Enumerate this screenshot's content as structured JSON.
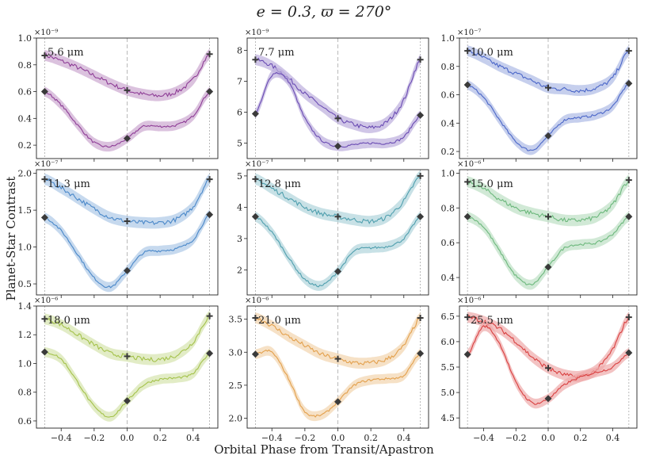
{
  "figure": {
    "title": "e = 0.3, ϖ = 270°",
    "ylabel": "Planet-Star Contrast",
    "xlabel": "Orbital Phase from Transit/Apastron"
  },
  "chart_data": [
    {
      "type": "line",
      "wavelength_label": "5.6 μm",
      "exponent_label": "×10⁻⁹",
      "color": "#8e3d96",
      "xlim": [
        -0.55,
        0.55
      ],
      "ylim": [
        0.1,
        1.0
      ],
      "yticks": [
        0.2,
        0.4,
        0.6,
        0.8,
        1.0
      ],
      "ytick_labels": [
        "0.2",
        "0.4",
        "0.6",
        "0.8",
        "1.0"
      ],
      "xticks": [
        -0.4,
        -0.2,
        0.0,
        0.2,
        0.4
      ],
      "xtick_labels": [],
      "series": [
        {
          "name": "upper",
          "x": [
            -0.5,
            -0.4,
            -0.3,
            -0.2,
            -0.1,
            0,
            0.1,
            0.2,
            0.3,
            0.4,
            0.5
          ],
          "values": [
            0.87,
            0.83,
            0.78,
            0.72,
            0.66,
            0.61,
            0.58,
            0.57,
            0.6,
            0.69,
            0.88
          ]
        },
        {
          "name": "lower",
          "x": [
            -0.5,
            -0.4,
            -0.3,
            -0.2,
            -0.1,
            0,
            0.1,
            0.2,
            0.3,
            0.4,
            0.5
          ],
          "values": [
            0.6,
            0.5,
            0.35,
            0.22,
            0.19,
            0.25,
            0.34,
            0.34,
            0.35,
            0.42,
            0.6
          ]
        }
      ],
      "markers": {
        "plus": [
          [
            -0.5,
            0.87
          ],
          [
            0,
            0.61
          ],
          [
            0.5,
            0.88
          ]
        ],
        "diamond": [
          [
            -0.5,
            0.6
          ],
          [
            0,
            0.25
          ],
          [
            0.5,
            0.6
          ]
        ]
      }
    },
    {
      "type": "line",
      "wavelength_label": "7.7 μm",
      "exponent_label": "×10⁻⁹",
      "color": "#6a4bb3",
      "xlim": [
        -0.55,
        0.55
      ],
      "ylim": [
        4.5,
        8.4
      ],
      "yticks": [
        5,
        6,
        7,
        8
      ],
      "ytick_labels": [
        "5",
        "6",
        "7",
        "8"
      ],
      "xticks": [
        -0.4,
        -0.2,
        0.0,
        0.2,
        0.4
      ],
      "xtick_labels": [],
      "series": [
        {
          "name": "upper",
          "x": [
            -0.5,
            -0.4,
            -0.3,
            -0.2,
            -0.1,
            0,
            0.1,
            0.2,
            0.3,
            0.4,
            0.5
          ],
          "values": [
            7.7,
            7.5,
            7.1,
            6.6,
            6.2,
            5.8,
            5.6,
            5.5,
            5.7,
            6.4,
            7.7
          ]
        },
        {
          "name": "lower",
          "x": [
            -0.5,
            -0.4,
            -0.3,
            -0.2,
            -0.1,
            0,
            0.1,
            0.2,
            0.3,
            0.4,
            0.5
          ],
          "values": [
            5.95,
            7.2,
            7.0,
            5.8,
            5.1,
            4.9,
            4.95,
            5.0,
            5.0,
            5.2,
            5.9
          ]
        }
      ],
      "markers": {
        "plus": [
          [
            -0.5,
            7.7
          ],
          [
            0,
            5.8
          ],
          [
            0.5,
            7.7
          ]
        ],
        "diamond": [
          [
            -0.5,
            5.95
          ],
          [
            0,
            4.9
          ],
          [
            0.5,
            5.9
          ]
        ]
      }
    },
    {
      "type": "line",
      "wavelength_label": "10.0 μm",
      "exponent_label": "×10⁻⁷",
      "color": "#4a66c8",
      "xlim": [
        -0.55,
        0.55
      ],
      "ylim": [
        0.15,
        1.0
      ],
      "yticks": [
        0.2,
        0.4,
        0.6,
        0.8,
        1.0
      ],
      "ytick_labels": [
        "0.2",
        "0.4",
        "0.6",
        "0.8",
        "1.0"
      ],
      "xticks": [
        -0.4,
        -0.2,
        0.0,
        0.2,
        0.4
      ],
      "xtick_labels": [],
      "series": [
        {
          "name": "upper",
          "x": [
            -0.5,
            -0.4,
            -0.3,
            -0.2,
            -0.1,
            0,
            0.1,
            0.2,
            0.3,
            0.4,
            0.5
          ],
          "values": [
            0.91,
            0.86,
            0.8,
            0.75,
            0.7,
            0.65,
            0.64,
            0.63,
            0.65,
            0.72,
            0.91
          ]
        },
        {
          "name": "lower",
          "x": [
            -0.5,
            -0.4,
            -0.3,
            -0.2,
            -0.1,
            0,
            0.1,
            0.2,
            0.3,
            0.4,
            0.5
          ],
          "values": [
            0.67,
            0.58,
            0.42,
            0.27,
            0.21,
            0.31,
            0.42,
            0.44,
            0.46,
            0.52,
            0.68
          ]
        }
      ],
      "markers": {
        "plus": [
          [
            -0.5,
            0.91
          ],
          [
            0,
            0.65
          ],
          [
            0.5,
            0.91
          ]
        ],
        "diamond": [
          [
            -0.5,
            0.67
          ],
          [
            0,
            0.31
          ],
          [
            0.5,
            0.68
          ]
        ]
      }
    },
    {
      "type": "line",
      "wavelength_label": "11.3 μm",
      "exponent_label": "×10⁻⁷",
      "color": "#4a88c9",
      "xlim": [
        -0.55,
        0.55
      ],
      "ylim": [
        0.35,
        2.05
      ],
      "yticks": [
        0.5,
        1.0,
        1.5,
        2.0
      ],
      "ytick_labels": [
        "0.5",
        "1.0",
        "1.5",
        "2.0"
      ],
      "xticks": [
        -0.4,
        -0.2,
        0.0,
        0.2,
        0.4
      ],
      "xtick_labels": [],
      "series": [
        {
          "name": "upper",
          "x": [
            -0.5,
            -0.4,
            -0.3,
            -0.2,
            -0.1,
            0,
            0.1,
            0.2,
            0.3,
            0.4,
            0.5
          ],
          "values": [
            1.92,
            1.8,
            1.66,
            1.52,
            1.4,
            1.35,
            1.33,
            1.33,
            1.38,
            1.55,
            1.92
          ]
        },
        {
          "name": "lower",
          "x": [
            -0.5,
            -0.4,
            -0.3,
            -0.2,
            -0.1,
            0,
            0.1,
            0.2,
            0.3,
            0.4,
            0.5
          ],
          "values": [
            1.4,
            1.22,
            0.9,
            0.58,
            0.46,
            0.68,
            0.92,
            0.95,
            0.98,
            1.1,
            1.44
          ]
        }
      ],
      "markers": {
        "plus": [
          [
            -0.5,
            1.92
          ],
          [
            0,
            1.35
          ],
          [
            0.5,
            1.92
          ]
        ],
        "diamond": [
          [
            -0.5,
            1.4
          ],
          [
            0,
            0.68
          ],
          [
            0.5,
            1.44
          ]
        ]
      }
    },
    {
      "type": "line",
      "wavelength_label": "12.8 μm",
      "exponent_label": "×10⁻⁷",
      "color": "#4f9fae",
      "xlim": [
        -0.55,
        0.55
      ],
      "ylim": [
        1.2,
        5.2
      ],
      "yticks": [
        2,
        3,
        4,
        5
      ],
      "ytick_labels": [
        "2",
        "3",
        "4",
        "5"
      ],
      "xticks": [
        -0.4,
        -0.2,
        0.0,
        0.2,
        0.4
      ],
      "xtick_labels": [],
      "series": [
        {
          "name": "upper",
          "x": [
            -0.5,
            -0.4,
            -0.3,
            -0.2,
            -0.1,
            0,
            0.1,
            0.2,
            0.3,
            0.4,
            0.5
          ],
          "values": [
            4.9,
            4.6,
            4.3,
            4.0,
            3.8,
            3.7,
            3.6,
            3.55,
            3.7,
            4.2,
            5.0
          ]
        },
        {
          "name": "lower",
          "x": [
            -0.5,
            -0.4,
            -0.3,
            -0.2,
            -0.1,
            0,
            0.1,
            0.2,
            0.3,
            0.4,
            0.5
          ],
          "values": [
            3.7,
            3.2,
            2.4,
            1.7,
            1.5,
            1.95,
            2.6,
            2.7,
            2.75,
            3.0,
            3.7
          ]
        }
      ],
      "markers": {
        "plus": [
          [
            -0.5,
            4.9
          ],
          [
            0,
            3.7
          ],
          [
            0.5,
            5.0
          ]
        ],
        "diamond": [
          [
            -0.5,
            3.7
          ],
          [
            0,
            1.95
          ],
          [
            0.5,
            3.7
          ]
        ]
      }
    },
    {
      "type": "line",
      "wavelength_label": "15.0 μm",
      "exponent_label": "×10⁻⁶",
      "color": "#6cb87c",
      "xlim": [
        -0.55,
        0.55
      ],
      "ylim": [
        0.3,
        1.02
      ],
      "yticks": [
        0.4,
        0.6,
        0.8,
        1.0
      ],
      "ytick_labels": [
        "0.4",
        "0.6",
        "0.8",
        "1.0"
      ],
      "xticks": [
        -0.4,
        -0.2,
        0.0,
        0.2,
        0.4
      ],
      "xtick_labels": [],
      "series": [
        {
          "name": "upper",
          "x": [
            -0.5,
            -0.4,
            -0.3,
            -0.2,
            -0.1,
            0,
            0.1,
            0.2,
            0.3,
            0.4,
            0.5
          ],
          "values": [
            0.95,
            0.91,
            0.85,
            0.8,
            0.77,
            0.75,
            0.73,
            0.73,
            0.75,
            0.82,
            0.96
          ]
        },
        {
          "name": "lower",
          "x": [
            -0.5,
            -0.4,
            -0.3,
            -0.2,
            -0.1,
            0,
            0.1,
            0.2,
            0.3,
            0.4,
            0.5
          ],
          "values": [
            0.75,
            0.69,
            0.55,
            0.41,
            0.36,
            0.46,
            0.57,
            0.59,
            0.6,
            0.65,
            0.75
          ]
        }
      ],
      "markers": {
        "plus": [
          [
            -0.5,
            0.95
          ],
          [
            0,
            0.75
          ],
          [
            0.5,
            0.96
          ]
        ],
        "diamond": [
          [
            -0.5,
            0.75
          ],
          [
            0,
            0.46
          ],
          [
            0.5,
            0.75
          ]
        ]
      }
    },
    {
      "type": "line",
      "wavelength_label": "18.0 μm",
      "exponent_label": "×10⁻⁶",
      "color": "#a4c24a",
      "xlim": [
        -0.55,
        0.55
      ],
      "ylim": [
        0.55,
        1.4
      ],
      "yticks": [
        0.6,
        0.8,
        1.0,
        1.2,
        1.4
      ],
      "ytick_labels": [
        "0.6",
        "0.8",
        "1.0",
        "1.2",
        "1.4"
      ],
      "xticks": [
        -0.4,
        -0.2,
        0.0,
        0.2,
        0.4
      ],
      "xtick_labels": [
        "−0.4",
        "−0.2",
        "0.0",
        "0.2",
        "0.4"
      ],
      "series": [
        {
          "name": "upper",
          "x": [
            -0.5,
            -0.4,
            -0.3,
            -0.2,
            -0.1,
            0,
            0.1,
            0.2,
            0.3,
            0.4,
            0.5
          ],
          "values": [
            1.31,
            1.27,
            1.2,
            1.13,
            1.07,
            1.05,
            1.03,
            1.03,
            1.06,
            1.15,
            1.33
          ]
        },
        {
          "name": "lower",
          "x": [
            -0.5,
            -0.4,
            -0.3,
            -0.2,
            -0.1,
            0,
            0.1,
            0.2,
            0.3,
            0.4,
            0.5
          ],
          "values": [
            1.08,
            1.03,
            0.87,
            0.7,
            0.63,
            0.74,
            0.85,
            0.89,
            0.9,
            0.93,
            1.07
          ]
        }
      ],
      "markers": {
        "plus": [
          [
            -0.5,
            1.31
          ],
          [
            0,
            1.05
          ],
          [
            0.5,
            1.33
          ]
        ],
        "diamond": [
          [
            -0.5,
            1.08
          ],
          [
            0,
            0.74
          ],
          [
            0.5,
            1.07
          ]
        ]
      }
    },
    {
      "type": "line",
      "wavelength_label": "21.0 μm",
      "exponent_label": "×10⁻⁶",
      "color": "#e3a04c",
      "xlim": [
        -0.55,
        0.55
      ],
      "ylim": [
        1.85,
        3.7
      ],
      "yticks": [
        2.0,
        2.5,
        3.0,
        3.5
      ],
      "ytick_labels": [
        "2.0",
        "2.5",
        "3.0",
        "3.5"
      ],
      "xticks": [
        -0.4,
        -0.2,
        0.0,
        0.2,
        0.4
      ],
      "xtick_labels": [
        "−0.4",
        "−0.2",
        "0.0",
        "0.2",
        "0.4"
      ],
      "series": [
        {
          "name": "upper",
          "x": [
            -0.5,
            -0.4,
            -0.3,
            -0.2,
            -0.1,
            0,
            0.1,
            0.2,
            0.3,
            0.4,
            0.5
          ],
          "values": [
            3.52,
            3.4,
            3.24,
            3.1,
            2.97,
            2.9,
            2.84,
            2.84,
            2.9,
            3.1,
            3.52
          ]
        },
        {
          "name": "lower",
          "x": [
            -0.5,
            -0.4,
            -0.3,
            -0.2,
            -0.1,
            0,
            0.1,
            0.2,
            0.3,
            0.4,
            0.5
          ],
          "values": [
            2.97,
            3.0,
            2.6,
            2.1,
            2.05,
            2.25,
            2.5,
            2.58,
            2.6,
            2.65,
            2.98
          ]
        }
      ],
      "markers": {
        "plus": [
          [
            -0.5,
            3.52
          ],
          [
            0,
            2.9
          ],
          [
            0.5,
            3.52
          ]
        ],
        "diamond": [
          [
            -0.5,
            2.97
          ],
          [
            0,
            2.25
          ],
          [
            0.5,
            2.98
          ]
        ]
      }
    },
    {
      "type": "line",
      "wavelength_label": "25.5 μm",
      "exponent_label": "×10⁻⁶",
      "color": "#d94040",
      "xlim": [
        -0.55,
        0.55
      ],
      "ylim": [
        4.3,
        6.7
      ],
      "yticks": [
        4.5,
        5.0,
        5.5,
        6.0,
        6.5
      ],
      "ytick_labels": [
        "4.5",
        "5.0",
        "5.5",
        "6.0",
        "6.5"
      ],
      "xticks": [
        -0.4,
        -0.2,
        0.0,
        0.2,
        0.4
      ],
      "xtick_labels": [
        "−0.4",
        "−0.2",
        "0.0",
        "0.2",
        "0.4"
      ],
      "series": [
        {
          "name": "upper",
          "x": [
            -0.5,
            -0.4,
            -0.3,
            -0.2,
            -0.1,
            0,
            0.1,
            0.2,
            0.3,
            0.4,
            0.5
          ],
          "values": [
            6.48,
            6.4,
            6.25,
            6.0,
            5.7,
            5.48,
            5.35,
            5.32,
            5.45,
            5.85,
            6.48
          ]
        },
        {
          "name": "lower",
          "x": [
            -0.5,
            -0.4,
            -0.3,
            -0.2,
            -0.1,
            0,
            0.1,
            0.2,
            0.3,
            0.4,
            0.5
          ],
          "values": [
            5.75,
            6.3,
            5.95,
            5.2,
            4.8,
            4.88,
            5.15,
            5.3,
            5.4,
            5.5,
            5.78
          ]
        }
      ],
      "markers": {
        "plus": [
          [
            -0.5,
            6.48
          ],
          [
            0,
            5.48
          ],
          [
            0.5,
            6.48
          ]
        ],
        "diamond": [
          [
            -0.5,
            5.75
          ],
          [
            0,
            4.88
          ],
          [
            0.5,
            5.78
          ]
        ]
      }
    }
  ]
}
